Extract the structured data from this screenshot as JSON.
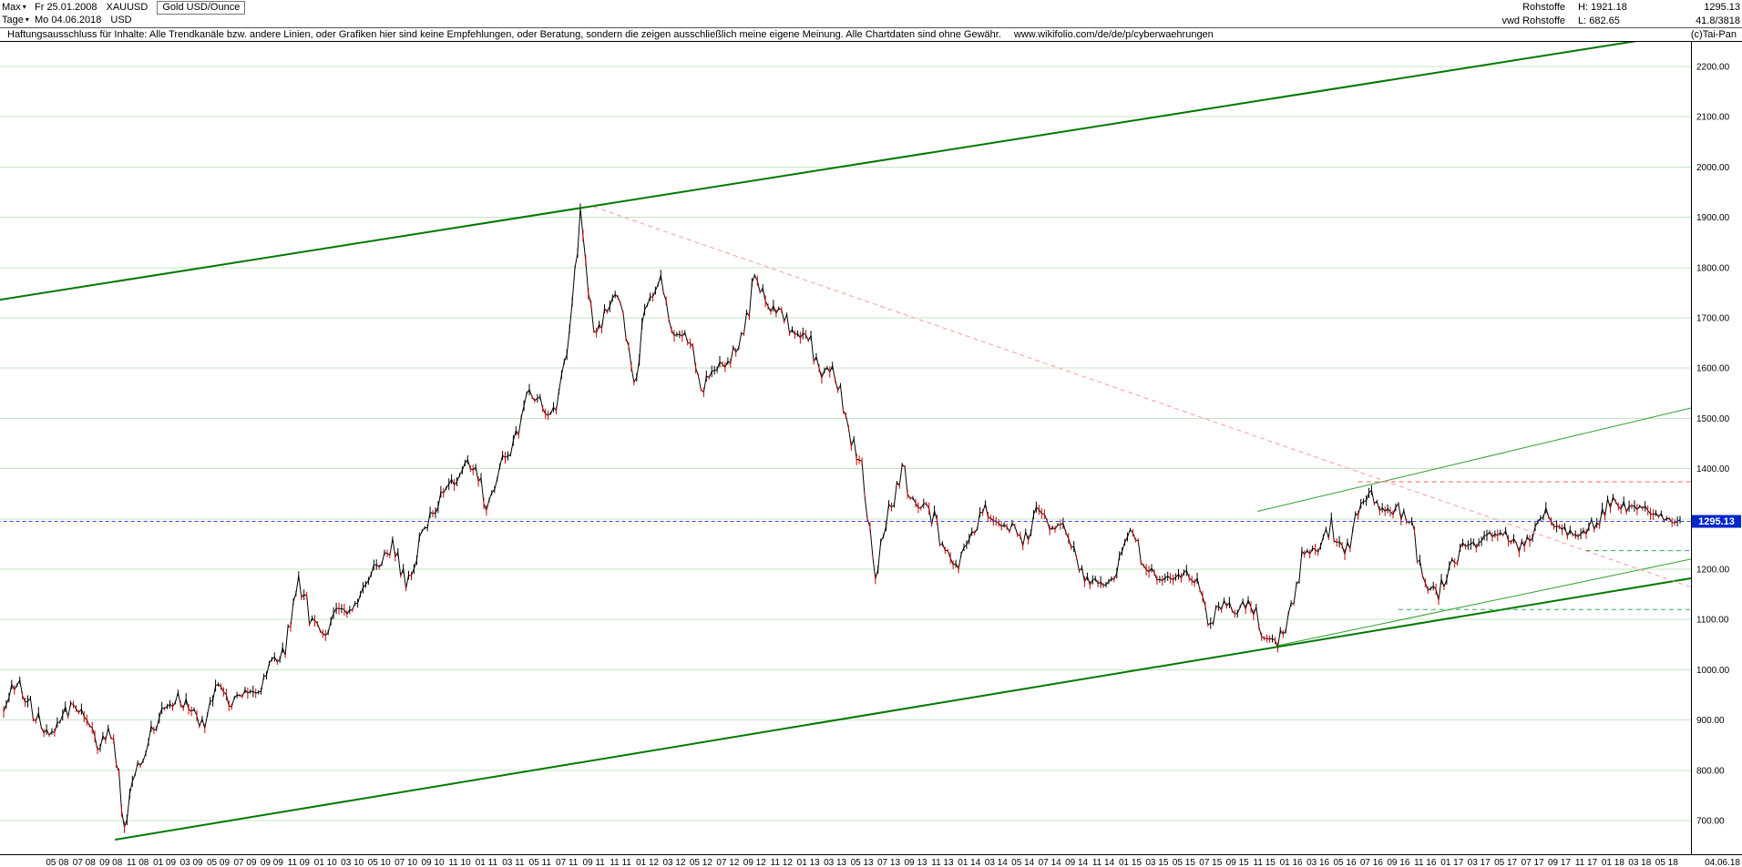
{
  "header": {
    "range_selector": "Max",
    "start_date": "Fr 25.01.2008",
    "symbol": "XAUUSD",
    "instrument": "Gold USD/Ounce",
    "period_selector": "Tage",
    "end_date": "Mo 04.06.2018",
    "currency": "USD",
    "category": "Rohstoffe",
    "source": "vwd Rohstoffe",
    "high_label": "H:",
    "high_value": "1921.18",
    "low_label": "L:",
    "low_value": "682.65",
    "last_value": "1295.13",
    "stat_value": "41.8/3818"
  },
  "disclaimer": {
    "text": "Haftungsausschluss für Inhalte: Alle Trendkanäle bzw. andere Linien, oder Grafiken hier sind keine Empfehlungen, oder Beratung, sondern die zeigen ausschließlich meine eigene Meinung. Alle Chartdaten sind ohne Gewähr.",
    "url": "www.wikifolio.com/de/de/p/cyberwaehrungen",
    "copyright": "(c)Tai-Pan"
  },
  "chart_data": {
    "type": "line",
    "title": "Gold USD/Ounce",
    "symbol": "XAUUSD",
    "x_unit": "months since 2008-01",
    "x_range": [
      "2008-01",
      "2018-06"
    ],
    "ylim": [
      633,
      2249
    ],
    "grid": "horizontal",
    "legend": "none",
    "high": 1921.18,
    "low": 682.65,
    "last": 1295.13,
    "last_label": "1295.13",
    "closes": [
      920,
      975,
      933,
      871,
      885,
      930,
      918,
      833,
      884,
      705,
      800,
      880,
      919,
      952,
      916,
      883,
      975,
      934,
      953,
      953,
      1008,
      1040,
      1175,
      1096,
      1078,
      1118,
      1115,
      1179,
      1215,
      1244,
      1169,
      1246,
      1307,
      1359,
      1385,
      1420,
      1327,
      1411,
      1439,
      1556,
      1536,
      1500,
      1628,
      1900,
      1660,
      1722,
      1746,
      1564,
      1737,
      1770,
      1662,
      1664,
      1558,
      1598,
      1615,
      1648,
      1776,
      1720,
      1715,
      1664,
      1664,
      1588,
      1598,
      1469,
      1394,
      1192,
      1311,
      1396,
      1326,
      1324,
      1253,
      1202,
      1251,
      1326,
      1291,
      1288,
      1250,
      1315,
      1285,
      1287,
      1216,
      1173,
      1175,
      1184,
      1283,
      1213,
      1184,
      1180,
      1191,
      1172,
      1095,
      1134,
      1115,
      1142,
      1061,
      1060,
      1118,
      1238,
      1232,
      1285,
      1215,
      1320,
      1351,
      1309,
      1322,
      1277,
      1173,
      1152,
      1210,
      1248,
      1249,
      1268,
      1269,
      1242,
      1269,
      1321,
      1280,
      1271,
      1275,
      1303,
      1345,
      1318,
      1325,
      1315,
      1298,
      1295.13
    ],
    "y_ticks": [
      {
        "value": 2200,
        "label": "2200.00"
      },
      {
        "value": 2100,
        "label": "2100.00"
      },
      {
        "value": 2000,
        "label": "2000.00"
      },
      {
        "value": 1900,
        "label": "1900.00"
      },
      {
        "value": 1800,
        "label": "1800.00"
      },
      {
        "value": 1700,
        "label": "1700.00"
      },
      {
        "value": 1600,
        "label": "1600.00"
      },
      {
        "value": 1500,
        "label": "1500.00"
      },
      {
        "value": 1400,
        "label": "1400.00"
      },
      {
        "value": 1300,
        "label": "1300.00"
      },
      {
        "value": 1200,
        "label": "1200.00"
      },
      {
        "value": 1100,
        "label": "1100.00"
      },
      {
        "value": 1000,
        "label": "1000.00"
      },
      {
        "value": 900,
        "label": "900.00"
      },
      {
        "value": 800,
        "label": "800.00"
      },
      {
        "value": 700,
        "label": "700.00"
      }
    ],
    "x_ticks": {
      "first_month_index": 4,
      "step_months": 2,
      "labels": [
        "05 08",
        "07 08",
        "09 08",
        "11 08",
        "01 09",
        "03 09",
        "05 09",
        "07 09",
        "09 09",
        "11 09",
        "01 10",
        "03 10",
        "05 10",
        "07 10",
        "09 10",
        "11 10",
        "01 11",
        "03 11",
        "05 11",
        "07 11",
        "09 11",
        "11 11",
        "01 12",
        "03 12",
        "05 12",
        "07 12",
        "09 12",
        "11 12",
        "01 13",
        "03 13",
        "05 13",
        "07 13",
        "09 13",
        "11 13",
        "01 14",
        "03 14",
        "05 14",
        "07 14",
        "09 14",
        "11 14",
        "01 15",
        "03 15",
        "05 15",
        "07 15",
        "09 15",
        "11 15",
        "01 16",
        "03 16",
        "05 16",
        "07 16",
        "09 16",
        "11 16",
        "01 17",
        "03 17",
        "05 17",
        "07 17",
        "09 17",
        "11 17",
        "01 18",
        "03 18",
        "05 18"
      ],
      "end_label": "04.06.18"
    },
    "trendlines": [
      {
        "name": "upper-channel",
        "color": "#007800",
        "width": 2,
        "dash": null,
        "m1": -0.5,
        "v1": 1735,
        "m2": 126.8,
        "v2": 2272
      },
      {
        "name": "lower-channel",
        "color": "#007800",
        "width": 2,
        "dash": null,
        "m1": 8.3,
        "v1": 662,
        "m2": 129,
        "v2": 1196
      },
      {
        "name": "inner-channel-upper",
        "color": "#2f9e2f",
        "width": 1,
        "dash": null,
        "m1": 93.5,
        "v1": 1315,
        "m2": 126.5,
        "v2": 1525
      },
      {
        "name": "inner-channel-lower",
        "color": "#2f9e2f",
        "width": 1,
        "dash": null,
        "m1": 95,
        "v1": 1048,
        "m2": 126.5,
        "v2": 1224
      },
      {
        "name": "resistance-diagonal",
        "color": "#ff9999",
        "width": 1,
        "dash": "5,4",
        "m1": 44,
        "v1": 1921,
        "m2": 126.5,
        "v2": 1158
      },
      {
        "name": "resistance-horizontal",
        "color": "#ff6666",
        "width": 1,
        "dash": "5,4",
        "m1": 101,
        "v1": 1374,
        "m2": 126.8,
        "v2": 1374
      },
      {
        "name": "support-horizontal-low",
        "color": "#33aa55",
        "width": 1,
        "dash": "5,4",
        "m1": 104,
        "v1": 1120,
        "m2": 126.8,
        "v2": 1120
      },
      {
        "name": "support-horizontal-high",
        "color": "#33aa55",
        "width": 1,
        "dash": "5,4",
        "m1": 118,
        "v1": 1237,
        "m2": 126.8,
        "v2": 1237
      },
      {
        "name": "last-price-line",
        "color": "#4040ff",
        "width": 1,
        "dash": "4,3",
        "m1": -0.5,
        "v1": 1295.13,
        "m2": 126.8,
        "v2": 1295.13
      }
    ],
    "colors": {
      "grid": "#c4e4c4",
      "candle_up": "#000000",
      "candle_down": "#cc0000",
      "last_badge": "#0026cc",
      "axis": "#000000"
    }
  }
}
